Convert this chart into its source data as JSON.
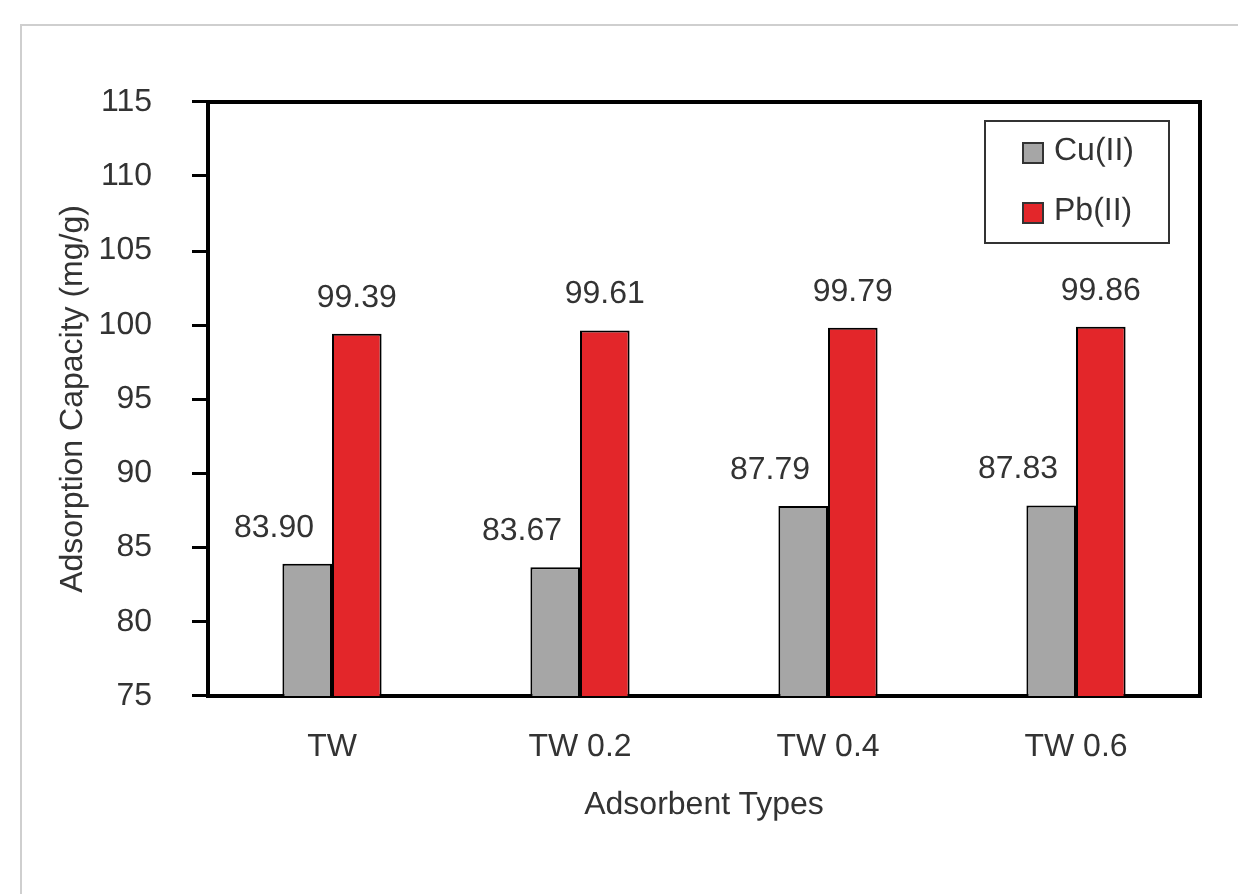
{
  "chart_data": {
    "type": "bar",
    "xlabel": "Adsorbent Types",
    "ylabel": "Adsorption Capacity (mg/g)",
    "categories": [
      "TW",
      "TW 0.2",
      "TW 0.4",
      "TW 0.6"
    ],
    "series": [
      {
        "name": "Cu(II)",
        "color": "#a6a6a6",
        "values": [
          83.9,
          83.67,
          87.79,
          87.83
        ],
        "value_labels": [
          "83.90",
          "83.67",
          "87.79",
          "87.83"
        ]
      },
      {
        "name": "Pb(II)",
        "color": "#e3262a",
        "values": [
          99.39,
          99.61,
          99.79,
          99.86
        ],
        "value_labels": [
          "99.39",
          "99.61",
          "99.79",
          "99.86"
        ]
      }
    ],
    "ylim": [
      75,
      115
    ],
    "yticks": [
      75,
      80,
      85,
      90,
      95,
      100,
      105,
      110,
      115
    ],
    "grid": false,
    "legend": "top right"
  }
}
